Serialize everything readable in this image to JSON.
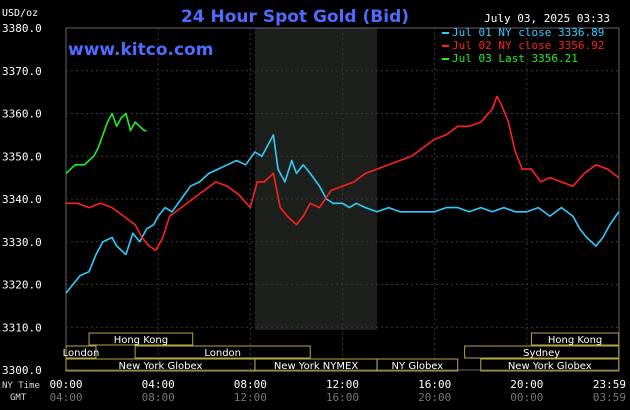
{
  "chart_data": {
    "type": "line",
    "title": "24 Hour Spot Gold (Bid)",
    "watermark": "www.kitco.com",
    "unit_label": "USD/oz",
    "date_label": "July 03, 2025 03:33",
    "ylim": [
      3300,
      3380
    ],
    "y_ticks": [
      "3380.0",
      "3370.0",
      "3360.0",
      "3350.0",
      "3340.0",
      "3330.0",
      "3320.0",
      "3310.0",
      "3300.0"
    ],
    "x_range_hours": [
      0,
      24
    ],
    "ny_time_label": "NY Time",
    "gmt_label": "GMT",
    "ny_ticks": [
      "00:00",
      "04:00",
      "08:00",
      "12:00",
      "16:00",
      "20:00",
      "23:59"
    ],
    "gmt_ticks": [
      "04:00",
      "08:00",
      "12:00",
      "16:00",
      "20:00",
      "00:00",
      "03:59"
    ],
    "legend_position": "top-right",
    "nymex_shade_hours": [
      8.2,
      13.5
    ],
    "series": [
      {
        "name": "Jul 01 NY close 3336.89",
        "color": "#33ccff",
        "x": [
          0,
          0.3,
          0.6,
          1.0,
          1.3,
          1.6,
          2.0,
          2.2,
          2.4,
          2.6,
          2.9,
          3.2,
          3.5,
          3.8,
          4.0,
          4.3,
          4.6,
          5.0,
          5.4,
          5.8,
          6.2,
          6.6,
          7.0,
          7.4,
          7.8,
          8.2,
          8.5,
          8.8,
          9.0,
          9.2,
          9.5,
          9.8,
          10.0,
          10.3,
          10.6,
          11.0,
          11.3,
          11.6,
          12.0,
          12.3,
          12.6,
          13.0,
          13.5,
          14.0,
          14.5,
          15.0,
          15.5,
          16.0,
          16.5,
          17.0,
          17.5,
          18.0,
          18.5,
          19.0,
          19.5,
          20.0,
          20.5,
          21.0,
          21.5,
          22.0,
          22.3,
          22.6,
          23.0,
          23.3,
          23.6,
          23.99
        ],
        "values": [
          3318,
          3320,
          3322,
          3323,
          3327,
          3330,
          3331,
          3329,
          3328,
          3327,
          3332,
          3330,
          3333,
          3334,
          3336,
          3338,
          3337,
          3340,
          3343,
          3344,
          3346,
          3347,
          3348,
          3349,
          3348,
          3351,
          3350,
          3353,
          3355,
          3347,
          3344,
          3349,
          3346,
          3348,
          3346,
          3343,
          3340,
          3339,
          3339,
          3338,
          3339,
          3338,
          3337,
          3338,
          3337,
          3337,
          3337,
          3337,
          3338,
          3338,
          3337,
          3338,
          3337,
          3338,
          3337,
          3337,
          3338,
          3336,
          3338,
          3336,
          3333,
          3331,
          3329,
          3331,
          3334,
          3337
        ]
      },
      {
        "name": "Jul 02 NY close 3356.92",
        "color": "#ff2020",
        "x": [
          0,
          0.5,
          1.0,
          1.5,
          2.0,
          2.5,
          3.0,
          3.3,
          3.6,
          3.9,
          4.2,
          4.5,
          5.0,
          5.5,
          6.0,
          6.5,
          7.0,
          7.5,
          8.0,
          8.3,
          8.6,
          9.0,
          9.3,
          9.6,
          10.0,
          10.3,
          10.6,
          11.0,
          11.5,
          12.0,
          12.5,
          13.0,
          13.5,
          14.0,
          14.5,
          15.0,
          15.5,
          16.0,
          16.5,
          17.0,
          17.5,
          18.0,
          18.5,
          18.7,
          18.9,
          19.2,
          19.5,
          19.8,
          20.2,
          20.6,
          21.0,
          21.5,
          22.0,
          22.5,
          23.0,
          23.5,
          23.99
        ],
        "values": [
          3339,
          3339,
          3338,
          3339,
          3338,
          3336,
          3334,
          3331,
          3329,
          3328,
          3331,
          3336,
          3338,
          3340,
          3342,
          3344,
          3343,
          3341,
          3338,
          3344,
          3344,
          3346,
          3338,
          3336,
          3334,
          3336,
          3339,
          3338,
          3342,
          3343,
          3344,
          3346,
          3347,
          3348,
          3349,
          3350,
          3352,
          3354,
          3355,
          3357,
          3357,
          3358,
          3361,
          3364,
          3362,
          3358,
          3351,
          3347,
          3347,
          3344,
          3345,
          3344,
          3343,
          3346,
          3348,
          3347,
          3345
        ]
      },
      {
        "name": "Jul 03 Last 3356.21",
        "color": "#22ee22",
        "x": [
          0,
          0.2,
          0.4,
          0.6,
          0.8,
          1.0,
          1.2,
          1.4,
          1.6,
          1.8,
          2.0,
          2.2,
          2.4,
          2.6,
          2.8,
          3.0,
          3.2,
          3.4,
          3.5
        ],
        "values": [
          3346,
          3347,
          3348,
          3348,
          3348,
          3349,
          3350,
          3352,
          3355,
          3358,
          3360,
          3357,
          3359,
          3360,
          3356,
          3358,
          3357,
          3356,
          3356
        ]
      }
    ],
    "markets": [
      {
        "label": "Hong Kong",
        "start": 1.0,
        "end": 5.5,
        "row": 0
      },
      {
        "label": "Hong Kong",
        "start": 20.2,
        "end": 23.99,
        "row": 0
      },
      {
        "label": "London",
        "start": 0.0,
        "end": 1.3,
        "row": 1
      },
      {
        "label": "London",
        "start": 3.0,
        "end": 10.6,
        "row": 1
      },
      {
        "label": "Sydney",
        "start": 17.3,
        "end": 23.99,
        "row": 1
      },
      {
        "label": "New York Globex",
        "start": 0.0,
        "end": 8.2,
        "row": 2
      },
      {
        "label": "New York NYMEX",
        "start": 8.2,
        "end": 13.5,
        "row": 2
      },
      {
        "label": "NY Globex",
        "start": 13.5,
        "end": 17.0,
        "row": 2
      },
      {
        "label": "New York Globex",
        "start": 18.0,
        "end": 23.99,
        "row": 2
      }
    ]
  }
}
